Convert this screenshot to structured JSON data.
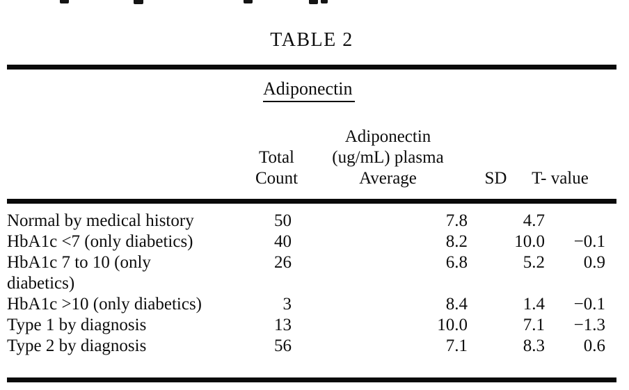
{
  "page": {
    "title": "TABLE 2",
    "section_heading": "Adiponectin"
  },
  "table": {
    "columns": {
      "count_lines": [
        "Total",
        "Count"
      ],
      "average_lines": [
        "Adiponectin",
        "(ug/mL) plasma",
        "Average"
      ],
      "sd": "SD",
      "t_value": "T- value"
    },
    "rows": [
      {
        "label": "Normal by medical history",
        "count": "50",
        "average": "7.8",
        "sd": "4.7",
        "t_value": ""
      },
      {
        "label": "HbA1c <7 (only diabetics)",
        "count": "40",
        "average": "8.2",
        "sd": "10.0",
        "t_value": "−0.1"
      },
      {
        "label": "HbA1c 7 to 10 (only\ndiabetics)",
        "count": "26",
        "average": "6.8",
        "sd": "5.2",
        "t_value": "0.9"
      },
      {
        "label": "HbA1c >10 (only diabetics)",
        "count": "3",
        "average": "8.4",
        "sd": "1.4",
        "t_value": "−0.1"
      },
      {
        "label": "Type 1 by diagnosis",
        "count": "13",
        "average": "10.0",
        "sd": "7.1",
        "t_value": "−1.3"
      },
      {
        "label": "Type 2 by diagnosis",
        "count": "56",
        "average": "7.1",
        "sd": "8.3",
        "t_value": "0.6"
      }
    ]
  }
}
